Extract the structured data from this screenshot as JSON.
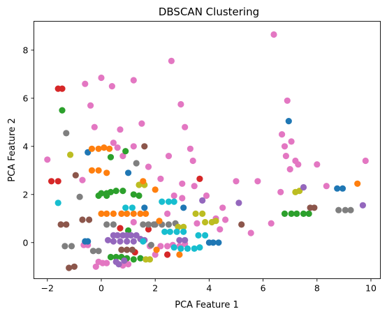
{
  "chart_data": {
    "type": "scatter",
    "title": "DBSCAN Clustering",
    "xlabel": "PCA Feature 1",
    "ylabel": "PCA Feature 2",
    "xlim": [
      -2.5,
      10.35
    ],
    "ylim": [
      -1.5,
      9.2
    ],
    "xticks": [
      -2,
      0,
      2,
      4,
      6,
      8,
      10
    ],
    "yticks": [
      0,
      2,
      4,
      6,
      8
    ],
    "grid": false,
    "legend": "none",
    "colors": {
      "blue": "#1f77b4",
      "orange": "#ff7f0e",
      "green": "#2ca02c",
      "red": "#d62728",
      "purple": "#9467bd",
      "brown": "#8c564b",
      "pink": "#e377c2",
      "gray": "#7f7f7f",
      "olive": "#bcbd22",
      "cyan": "#17becf"
    },
    "groups": [
      {
        "color": "pink",
        "points": [
          [
            6.4,
            8.65
          ],
          [
            2.6,
            7.55
          ],
          [
            0,
            6.85
          ],
          [
            1.2,
            6.75
          ],
          [
            -0.6,
            6.6
          ],
          [
            0.4,
            6.5
          ],
          [
            6.9,
            5.9
          ],
          [
            2.95,
            5.75
          ],
          [
            -0.4,
            5.7
          ],
          [
            1.5,
            4.95
          ],
          [
            3.1,
            4.8
          ],
          [
            0.7,
            4.7
          ],
          [
            6.7,
            4.5
          ],
          [
            7.05,
            4.2
          ],
          [
            -0.25,
            4.8
          ],
          [
            0.45,
            4.15
          ],
          [
            3.3,
            3.9
          ],
          [
            0.6,
            3.95
          ],
          [
            1.2,
            4.0
          ],
          [
            0.8,
            3.6
          ],
          [
            2.5,
            3.6
          ],
          [
            6.85,
            3.6
          ],
          [
            -2.0,
            3.45
          ],
          [
            1.75,
            3.15
          ],
          [
            3.4,
            3.4
          ],
          [
            7.2,
            3.4
          ],
          [
            7.3,
            3.25
          ],
          [
            9.8,
            3.4
          ],
          [
            8.0,
            3.25
          ],
          [
            6.65,
            2.1
          ],
          [
            3.0,
            2.45
          ],
          [
            3.45,
            2.35
          ],
          [
            5.0,
            2.55
          ],
          [
            5.8,
            2.55
          ],
          [
            8.35,
            2.35
          ],
          [
            2.2,
            2.65
          ],
          [
            -0.7,
            2.6
          ],
          [
            2.7,
            1.95
          ],
          [
            3.0,
            1.85
          ],
          [
            3.9,
            1.95
          ],
          [
            0.75,
            1.2
          ],
          [
            1.2,
            0.85
          ],
          [
            2.45,
            1.2
          ],
          [
            3.55,
            0.8
          ],
          [
            4.25,
            1.0
          ],
          [
            4.5,
            1.45
          ],
          [
            4.6,
            0.95
          ],
          [
            5.55,
            0.4
          ],
          [
            6.3,
            0.8
          ],
          [
            4.4,
            0.55
          ],
          [
            -0.65,
            -0.1
          ],
          [
            -0.5,
            -0.1
          ],
          [
            0.2,
            -0.85
          ],
          [
            -0.2,
            -1.0
          ],
          [
            -0.1,
            -0.8
          ],
          [
            0.05,
            -0.85
          ],
          [
            0.8,
            -0.95
          ],
          [
            1.0,
            -0.9
          ],
          [
            2.0,
            -0.5
          ],
          [
            2.2,
            -0.15
          ],
          [
            2.45,
            -0.15
          ],
          [
            2.65,
            -0.1
          ],
          [
            2.9,
            -0.15
          ],
          [
            3.1,
            -0.05
          ],
          [
            1.8,
            -0.15
          ],
          [
            7.0,
            3.05
          ],
          [
            6.8,
            4.0
          ]
        ]
      },
      {
        "color": "blue",
        "points": [
          [
            6.95,
            5.05
          ],
          [
            -0.5,
            3.75
          ],
          [
            1.0,
            2.9
          ],
          [
            1.6,
            1.45
          ],
          [
            3.05,
            1.45
          ],
          [
            -0.5,
            0.05
          ],
          [
            -0.6,
            0.05
          ],
          [
            4.0,
            0.0
          ],
          [
            4.15,
            0.0
          ],
          [
            4.35,
            0.0
          ],
          [
            8.75,
            2.25
          ],
          [
            8.95,
            2.25
          ]
        ]
      },
      {
        "color": "red",
        "points": [
          [
            -1.6,
            6.4
          ],
          [
            -1.45,
            6.4
          ],
          [
            -1.85,
            2.55
          ],
          [
            -1.6,
            2.55
          ],
          [
            3.65,
            2.65
          ],
          [
            1.75,
            0.55
          ],
          [
            1.25,
            -0.4
          ],
          [
            2.45,
            -0.5
          ],
          [
            0.7,
            0.6
          ]
        ]
      },
      {
        "color": "green",
        "points": [
          [
            -1.45,
            5.5
          ],
          [
            0.9,
            3.8
          ],
          [
            0.35,
            3.55
          ],
          [
            0.0,
            2.05
          ],
          [
            0.2,
            2.05
          ],
          [
            0.35,
            2.1
          ],
          [
            0.55,
            2.15
          ],
          [
            0.8,
            2.15
          ],
          [
            0.2,
            1.95
          ],
          [
            -0.1,
            1.95
          ],
          [
            1.2,
            2.0
          ],
          [
            1.4,
            1.95
          ],
          [
            0.35,
            -0.6
          ],
          [
            0.55,
            -0.6
          ],
          [
            0.75,
            -0.6
          ],
          [
            0.95,
            -0.65
          ],
          [
            1.2,
            -0.7
          ],
          [
            1.45,
            -0.65
          ],
          [
            1.0,
            0.5
          ],
          [
            7.7,
            1.2
          ],
          [
            7.5,
            1.2
          ],
          [
            7.25,
            1.2
          ],
          [
            7.05,
            1.2
          ],
          [
            6.8,
            1.2
          ]
        ]
      },
      {
        "color": "gray",
        "points": [
          [
            -1.3,
            4.55
          ],
          [
            -1.35,
            -0.15
          ],
          [
            -1.1,
            -0.15
          ],
          [
            -0.3,
            -0.35
          ],
          [
            -0.1,
            -0.35
          ],
          [
            1.3,
            3.3
          ],
          [
            1.75,
            0.75
          ],
          [
            2.0,
            0.75
          ],
          [
            2.25,
            0.75
          ],
          [
            2.5,
            0.75
          ],
          [
            2.75,
            0.8
          ],
          [
            1.95,
            0.75
          ],
          [
            1.55,
            0.75
          ],
          [
            8.8,
            1.35
          ],
          [
            9.05,
            1.35
          ],
          [
            9.25,
            1.35
          ],
          [
            0.2,
            0.75
          ],
          [
            0.45,
            0.75
          ],
          [
            1.85,
            -0.1
          ],
          [
            -0.8,
            1.9
          ]
        ]
      },
      {
        "color": "olive",
        "points": [
          [
            -1.15,
            3.65
          ],
          [
            1.4,
            2.4
          ],
          [
            1.6,
            2.4
          ],
          [
            3.5,
            1.2
          ],
          [
            3.75,
            1.2
          ],
          [
            2.85,
            0.65
          ],
          [
            3.05,
            0.65
          ],
          [
            3.85,
            0.85
          ],
          [
            4.1,
            0.85
          ],
          [
            4.25,
            0.9
          ],
          [
            7.2,
            2.1
          ],
          [
            7.35,
            2.15
          ],
          [
            1.65,
            -0.7
          ],
          [
            1.8,
            -0.7
          ]
        ]
      },
      {
        "color": "orange",
        "points": [
          [
            -0.35,
            3.9
          ],
          [
            -0.1,
            3.9
          ],
          [
            0.1,
            3.95
          ],
          [
            0.3,
            3.9
          ],
          [
            -0.35,
            3.0
          ],
          [
            -0.1,
            3.0
          ],
          [
            1.55,
            2.55
          ],
          [
            2.0,
            2.2
          ],
          [
            0.2,
            1.2
          ],
          [
            0.45,
            1.2
          ],
          [
            0.75,
            1.2
          ],
          [
            0.95,
            1.2
          ],
          [
            1.2,
            1.2
          ],
          [
            1.45,
            1.2
          ],
          [
            1.65,
            1.2
          ],
          [
            2.15,
            0.9
          ],
          [
            2.05,
            -0.3
          ],
          [
            2.9,
            -0.5
          ],
          [
            9.5,
            2.45
          ],
          [
            0.0,
            1.2
          ],
          [
            0.2,
            2.9
          ]
        ]
      },
      {
        "color": "brown",
        "points": [
          [
            -0.95,
            2.8
          ],
          [
            1.6,
            4.0
          ],
          [
            -1.5,
            0.75
          ],
          [
            -1.3,
            0.75
          ],
          [
            -0.7,
            0.95
          ],
          [
            -0.45,
            0.95
          ],
          [
            5.2,
            0.75
          ],
          [
            7.75,
            1.45
          ],
          [
            7.9,
            1.45
          ],
          [
            -1.2,
            -1.05
          ],
          [
            -1.0,
            -1.0
          ],
          [
            0.75,
            -0.3
          ],
          [
            0.95,
            -0.3
          ],
          [
            1.15,
            -0.3
          ]
        ]
      },
      {
        "color": "purple",
        "points": [
          [
            0.45,
            0.3
          ],
          [
            0.6,
            0.3
          ],
          [
            0.8,
            0.3
          ],
          [
            0.95,
            0.3
          ],
          [
            1.1,
            0.3
          ],
          [
            1.3,
            0.3
          ],
          [
            1.45,
            0.15
          ],
          [
            1.6,
            0.1
          ],
          [
            0.25,
            0.1
          ],
          [
            0.45,
            0.05
          ],
          [
            0.7,
            0.05
          ],
          [
            0.95,
            0.05
          ],
          [
            1.2,
            0.05
          ],
          [
            2.9,
            0.1
          ],
          [
            3.1,
            0.1
          ],
          [
            3.75,
            1.75
          ],
          [
            5.1,
            1.65
          ],
          [
            7.5,
            2.3
          ],
          [
            9.7,
            1.55
          ],
          [
            0.55,
            -0.8
          ],
          [
            0.65,
            -0.9
          ],
          [
            0.85,
            -0.75
          ]
        ]
      },
      {
        "color": "cyan",
        "points": [
          [
            -1.6,
            1.65
          ],
          [
            0.9,
            1.45
          ],
          [
            1.15,
            1.45
          ],
          [
            2.25,
            1.7
          ],
          [
            2.5,
            1.7
          ],
          [
            2.7,
            1.7
          ],
          [
            2.35,
            0.45
          ],
          [
            2.55,
            0.45
          ],
          [
            2.8,
            0.45
          ],
          [
            3.05,
            0.45
          ],
          [
            3.6,
            0.3
          ],
          [
            3.85,
            0.3
          ],
          [
            3.45,
            -0.25
          ],
          [
            3.2,
            -0.25
          ],
          [
            2.95,
            -0.25
          ],
          [
            2.7,
            -0.2
          ],
          [
            3.65,
            -0.2
          ],
          [
            1.55,
            0.05
          ]
        ]
      }
    ]
  }
}
